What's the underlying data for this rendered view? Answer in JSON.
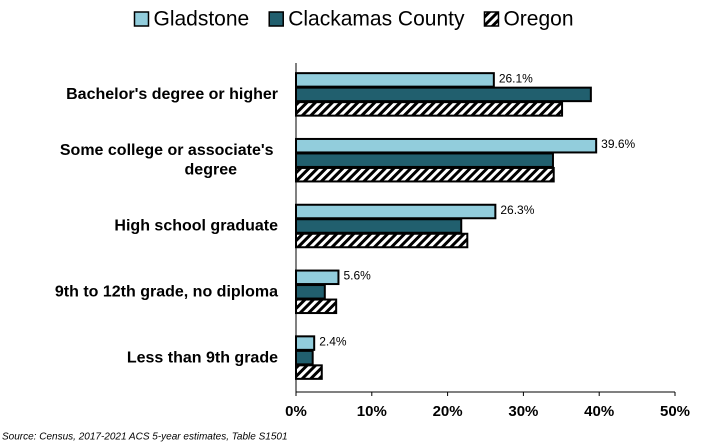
{
  "chart_data": {
    "type": "hbar",
    "categories": [
      "Bachelor's degree or higher",
      "Some college or associate's degree",
      "High school graduate",
      "9th to 12th grade, no diploma",
      "Less than 9th grade"
    ],
    "series": [
      {
        "name": "Gladstone",
        "color": "#92cddc",
        "values": [
          26.1,
          39.6,
          26.3,
          5.6,
          2.4
        ],
        "value_labels": [
          "26.1%",
          "39.6%",
          "26.3%",
          "5.6%",
          "2.4%"
        ]
      },
      {
        "name": "Clackamas County",
        "color": "#215f6e",
        "values": [
          38.9,
          33.9,
          21.8,
          3.8,
          2.2
        ]
      },
      {
        "name": "Oregon",
        "color": "hatch",
        "values": [
          35.1,
          34.0,
          22.6,
          5.3,
          3.4
        ]
      }
    ],
    "xlim": [
      0,
      50
    ],
    "xticks": [
      {
        "value": 0,
        "label": "0%"
      },
      {
        "value": 10,
        "label": "10%"
      },
      {
        "value": 20,
        "label": "20%"
      },
      {
        "value": 30,
        "label": "30%"
      },
      {
        "value": 40,
        "label": "40%"
      },
      {
        "value": 50,
        "label": "50%"
      }
    ],
    "legend": "top",
    "source": "Source: Census, 2017-2021 ACS 5-year estimates, Table S1501"
  }
}
